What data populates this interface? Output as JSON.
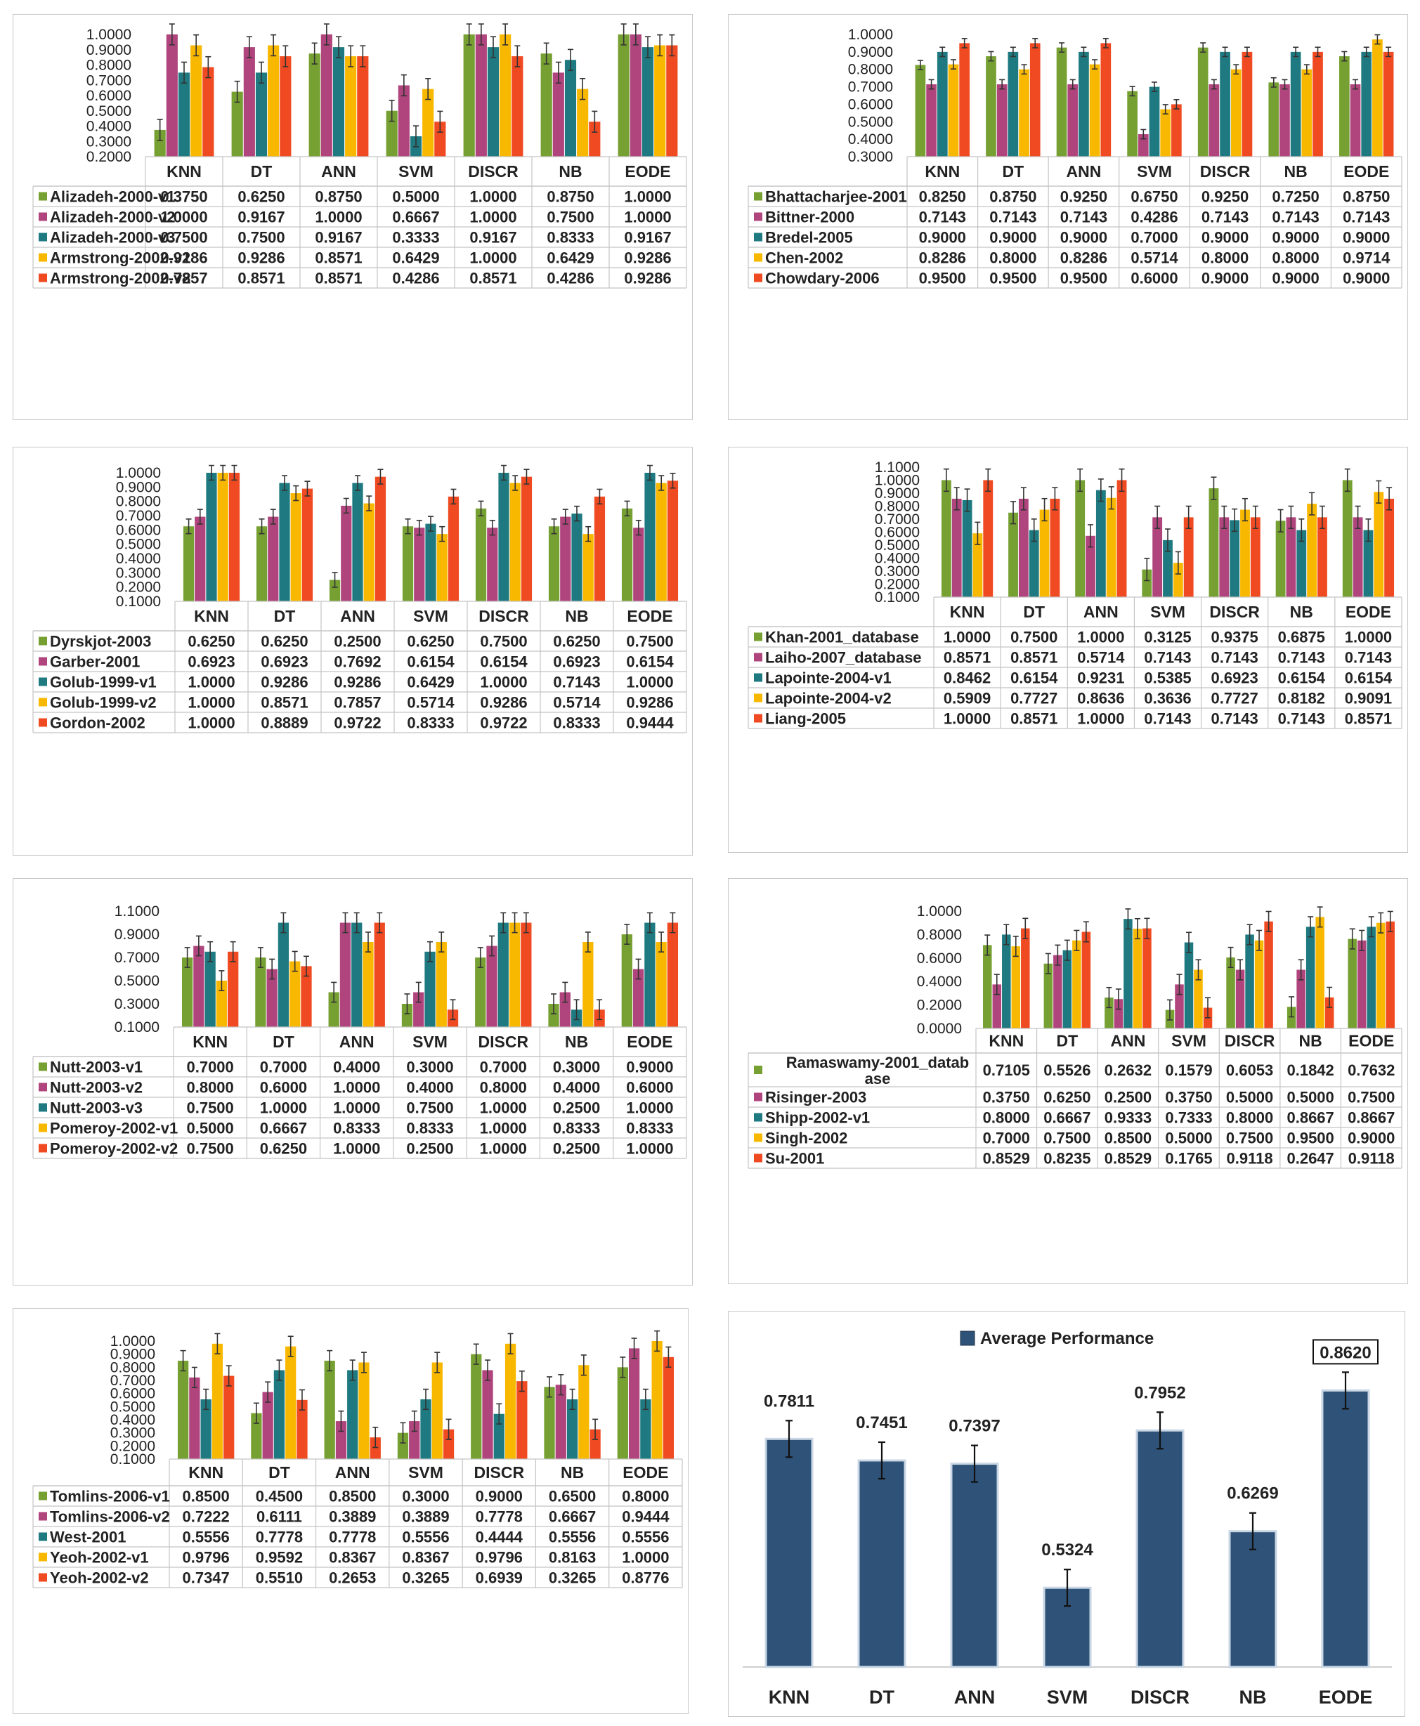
{
  "colors": {
    "green": "#77A033",
    "magenta": "#B0457D",
    "teal": "#1E7A80",
    "yellow": "#F9B800",
    "red": "#F04A22",
    "navy": "#2F5378"
  },
  "chart_data": [
    {
      "type": "bar",
      "categories": [
        "KNN",
        "DT",
        "ANN",
        "SVM",
        "DISCR",
        "NB",
        "EODE"
      ],
      "ylim": [
        0.2,
        1.0
      ],
      "yticks": [
        "0.2000",
        "0.3000",
        "0.4000",
        "0.5000",
        "0.6000",
        "0.7000",
        "0.8000",
        "0.9000",
        "1.0000"
      ],
      "series": [
        {
          "name": "Alizadeh-2000-v1",
          "values": [
            0.375,
            0.625,
            0.875,
            0.5,
            1.0,
            0.875,
            1.0
          ],
          "labels": [
            "0.3750",
            "0.6250",
            "0.8750",
            "0.5000",
            "1.0000",
            "0.8750",
            "1.0000"
          ]
        },
        {
          "name": "Alizadeh-2000-v2",
          "values": [
            1.0,
            0.9167,
            1.0,
            0.6667,
            1.0,
            0.75,
            1.0
          ],
          "labels": [
            "1.0000",
            "0.9167",
            "1.0000",
            "0.6667",
            "1.0000",
            "0.7500",
            "1.0000"
          ]
        },
        {
          "name": "Alizadeh-2000-v3",
          "values": [
            0.75,
            0.75,
            0.9167,
            0.3333,
            0.9167,
            0.8333,
            0.9167
          ],
          "labels": [
            "0.7500",
            "0.7500",
            "0.9167",
            "0.3333",
            "0.9167",
            "0.8333",
            "0.9167"
          ]
        },
        {
          "name": "Armstrong-2002-v1",
          "values": [
            0.9286,
            0.9286,
            0.8571,
            0.6429,
            1.0,
            0.6429,
            0.9286
          ],
          "labels": [
            "0.9286",
            "0.9286",
            "0.8571",
            "0.6429",
            "1.0000",
            "0.6429",
            "0.9286"
          ]
        },
        {
          "name": "Armstrong-2002-v2",
          "values": [
            0.7857,
            0.8571,
            0.8571,
            0.4286,
            0.8571,
            0.4286,
            0.9286
          ],
          "labels": [
            "0.7857",
            "0.8571",
            "0.8571",
            "0.4286",
            "0.8571",
            "0.4286",
            "0.9286"
          ]
        }
      ]
    },
    {
      "type": "bar",
      "categories": [
        "KNN",
        "DT",
        "ANN",
        "SVM",
        "DISCR",
        "NB",
        "EODE"
      ],
      "ylim": [
        0.3,
        1.0
      ],
      "yticks": [
        "0.3000",
        "0.4000",
        "0.5000",
        "0.6000",
        "0.7000",
        "0.8000",
        "0.9000",
        "1.0000"
      ],
      "series": [
        {
          "name": "Bhattacharjee-2001",
          "values": [
            0.825,
            0.875,
            0.925,
            0.675,
            0.925,
            0.725,
            0.875
          ],
          "labels": [
            "0.8250",
            "0.8750",
            "0.9250",
            "0.6750",
            "0.9250",
            "0.7250",
            "0.8750"
          ]
        },
        {
          "name": "Bittner-2000",
          "values": [
            0.7143,
            0.7143,
            0.7143,
            0.4286,
            0.7143,
            0.7143,
            0.7143
          ],
          "labels": [
            "0.7143",
            "0.7143",
            "0.7143",
            "0.4286",
            "0.7143",
            "0.7143",
            "0.7143"
          ]
        },
        {
          "name": "Bredel-2005",
          "values": [
            0.9,
            0.9,
            0.9,
            0.7,
            0.9,
            0.9,
            0.9
          ],
          "labels": [
            "0.9000",
            "0.9000",
            "0.9000",
            "0.7000",
            "0.9000",
            "0.9000",
            "0.9000"
          ]
        },
        {
          "name": "Chen-2002",
          "values": [
            0.8286,
            0.8,
            0.8286,
            0.5714,
            0.8,
            0.8,
            0.9714
          ],
          "labels": [
            "0.8286",
            "0.8000",
            "0.8286",
            "0.5714",
            "0.8000",
            "0.8000",
            "0.9714"
          ]
        },
        {
          "name": "Chowdary-2006",
          "values": [
            0.95,
            0.95,
            0.95,
            0.6,
            0.9,
            0.9,
            0.9
          ],
          "labels": [
            "0.9500",
            "0.9500",
            "0.9500",
            "0.6000",
            "0.9000",
            "0.9000",
            "0.9000"
          ]
        }
      ]
    },
    {
      "type": "bar",
      "categories": [
        "KNN",
        "DT",
        "ANN",
        "SVM",
        "DISCR",
        "NB",
        "EODE"
      ],
      "ylim": [
        0.1,
        1.0
      ],
      "yticks": [
        "0.1000",
        "0.2000",
        "0.3000",
        "0.4000",
        "0.5000",
        "0.6000",
        "0.7000",
        "0.8000",
        "0.9000",
        "1.0000"
      ],
      "series": [
        {
          "name": "Dyrskjot-2003",
          "values": [
            0.625,
            0.625,
            0.25,
            0.625,
            0.75,
            0.625,
            0.75
          ],
          "labels": [
            "0.6250",
            "0.6250",
            "0.2500",
            "0.6250",
            "0.7500",
            "0.6250",
            "0.7500"
          ]
        },
        {
          "name": "Garber-2001",
          "values": [
            0.6923,
            0.6923,
            0.7692,
            0.6154,
            0.6154,
            0.6923,
            0.6154
          ],
          "labels": [
            "0.6923",
            "0.6923",
            "0.7692",
            "0.6154",
            "0.6154",
            "0.6923",
            "0.6154"
          ]
        },
        {
          "name": "Golub-1999-v1",
          "values": [
            1.0,
            0.9286,
            0.9286,
            0.6429,
            1.0,
            0.7143,
            1.0
          ],
          "labels": [
            "1.0000",
            "0.9286",
            "0.9286",
            "0.6429",
            "1.0000",
            "0.7143",
            "1.0000"
          ]
        },
        {
          "name": "Golub-1999-v2",
          "values": [
            1.0,
            0.8571,
            0.7857,
            0.5714,
            0.9286,
            0.5714,
            0.9286
          ],
          "labels": [
            "1.0000",
            "0.8571",
            "0.7857",
            "0.5714",
            "0.9286",
            "0.5714",
            "0.9286"
          ]
        },
        {
          "name": "Gordon-2002",
          "values": [
            1.0,
            0.8889,
            0.9722,
            0.8333,
            0.9722,
            0.8333,
            0.9444
          ],
          "labels": [
            "1.0000",
            "0.8889",
            "0.9722",
            "0.8333",
            "0.9722",
            "0.8333",
            "0.9444"
          ]
        }
      ]
    },
    {
      "type": "bar",
      "categories": [
        "KNN",
        "DT",
        "ANN",
        "SVM",
        "DISCR",
        "NB",
        "EODE"
      ],
      "ylim": [
        0.1,
        1.1
      ],
      "yticks": [
        "0.1000",
        "0.2000",
        "0.3000",
        "0.4000",
        "0.5000",
        "0.6000",
        "0.7000",
        "0.8000",
        "0.9000",
        "1.0000",
        "1.1000"
      ],
      "series": [
        {
          "name": "Khan-2001_database",
          "values": [
            1.0,
            0.75,
            1.0,
            0.3125,
            0.9375,
            0.6875,
            1.0
          ],
          "labels": [
            "1.0000",
            "0.7500",
            "1.0000",
            "0.3125",
            "0.9375",
            "0.6875",
            "1.0000"
          ]
        },
        {
          "name": "Laiho-2007_database",
          "values": [
            0.8571,
            0.8571,
            0.5714,
            0.7143,
            0.7143,
            0.7143,
            0.7143
          ],
          "labels": [
            "0.8571",
            "0.8571",
            "0.5714",
            "0.7143",
            "0.7143",
            "0.7143",
            "0.7143"
          ]
        },
        {
          "name": "Lapointe-2004-v1",
          "values": [
            0.8462,
            0.6154,
            0.9231,
            0.5385,
            0.6923,
            0.6154,
            0.6154
          ],
          "labels": [
            "0.8462",
            "0.6154",
            "0.9231",
            "0.5385",
            "0.6923",
            "0.6154",
            "0.6154"
          ]
        },
        {
          "name": "Lapointe-2004-v2",
          "values": [
            0.5909,
            0.7727,
            0.8636,
            0.3636,
            0.7727,
            0.8182,
            0.9091
          ],
          "labels": [
            "0.5909",
            "0.7727",
            "0.8636",
            "0.3636",
            "0.7727",
            "0.8182",
            "0.9091"
          ]
        },
        {
          "name": "Liang-2005",
          "values": [
            1.0,
            0.8571,
            1.0,
            0.7143,
            0.7143,
            0.7143,
            0.8571
          ],
          "labels": [
            "1.0000",
            "0.8571",
            "1.0000",
            "0.7143",
            "0.7143",
            "0.7143",
            "0.8571"
          ]
        }
      ]
    },
    {
      "type": "bar",
      "categories": [
        "KNN",
        "DT",
        "ANN",
        "SVM",
        "DISCR",
        "NB",
        "EODE"
      ],
      "ylim": [
        0.1,
        1.1
      ],
      "yticks": [
        "0.1000",
        "0.3000",
        "0.5000",
        "0.7000",
        "0.9000",
        "1.1000"
      ],
      "series": [
        {
          "name": "Nutt-2003-v1",
          "values": [
            0.7,
            0.7,
            0.4,
            0.3,
            0.7,
            0.3,
            0.9
          ],
          "labels": [
            "0.7000",
            "0.7000",
            "0.4000",
            "0.3000",
            "0.7000",
            "0.3000",
            "0.9000"
          ]
        },
        {
          "name": "Nutt-2003-v2",
          "values": [
            0.8,
            0.6,
            1.0,
            0.4,
            0.8,
            0.4,
            0.6
          ],
          "labels": [
            "0.8000",
            "0.6000",
            "1.0000",
            "0.4000",
            "0.8000",
            "0.4000",
            "0.6000"
          ]
        },
        {
          "name": "Nutt-2003-v3",
          "values": [
            0.75,
            1.0,
            1.0,
            0.75,
            1.0,
            0.25,
            1.0
          ],
          "labels": [
            "0.7500",
            "1.0000",
            "1.0000",
            "0.7500",
            "1.0000",
            "0.2500",
            "1.0000"
          ]
        },
        {
          "name": "Pomeroy-2002-v1",
          "values": [
            0.5,
            0.6667,
            0.8333,
            0.8333,
            1.0,
            0.8333,
            0.8333
          ],
          "labels": [
            "0.5000",
            "0.6667",
            "0.8333",
            "0.8333",
            "1.0000",
            "0.8333",
            "0.8333"
          ]
        },
        {
          "name": "Pomeroy-2002-v2",
          "values": [
            0.75,
            0.625,
            1.0,
            0.25,
            1.0,
            0.25,
            1.0
          ],
          "labels": [
            "0.7500",
            "0.6250",
            "1.0000",
            "0.2500",
            "1.0000",
            "0.2500",
            "1.0000"
          ]
        }
      ]
    },
    {
      "type": "bar",
      "categories": [
        "KNN",
        "DT",
        "ANN",
        "SVM",
        "DISCR",
        "NB",
        "EODE"
      ],
      "ylim": [
        0.0,
        1.0
      ],
      "yticks": [
        "0.0000",
        "0.2000",
        "0.4000",
        "0.6000",
        "0.8000",
        "1.0000"
      ],
      "series": [
        {
          "name": "Ramaswamy-2001_datab ase",
          "values": [
            0.7105,
            0.5526,
            0.2632,
            0.1579,
            0.6053,
            0.1842,
            0.7632
          ],
          "labels": [
            "0.7105",
            "0.5526",
            "0.2632",
            "0.1579",
            "0.6053",
            "0.1842",
            "0.7632"
          ]
        },
        {
          "name": "Risinger-2003",
          "values": [
            0.375,
            0.625,
            0.25,
            0.375,
            0.5,
            0.5,
            0.75
          ],
          "labels": [
            "0.3750",
            "0.6250",
            "0.2500",
            "0.3750",
            "0.5000",
            "0.5000",
            "0.7500"
          ]
        },
        {
          "name": "Shipp-2002-v1",
          "values": [
            0.8,
            0.6667,
            0.9333,
            0.7333,
            0.8,
            0.8667,
            0.8667
          ],
          "labels": [
            "0.8000",
            "0.6667",
            "0.9333",
            "0.7333",
            "0.8000",
            "0.8667",
            "0.8667"
          ]
        },
        {
          "name": "Singh-2002",
          "values": [
            0.7,
            0.75,
            0.85,
            0.5,
            0.75,
            0.95,
            0.9
          ],
          "labels": [
            "0.7000",
            "0.7500",
            "0.8500",
            "0.5000",
            "0.7500",
            "0.9500",
            "0.9000"
          ]
        },
        {
          "name": "Su-2001",
          "values": [
            0.8529,
            0.8235,
            0.8529,
            0.1765,
            0.9118,
            0.2647,
            0.9118
          ],
          "labels": [
            "0.8529",
            "0.8235",
            "0.8529",
            "0.1765",
            "0.9118",
            "0.2647",
            "0.9118"
          ]
        }
      ]
    },
    {
      "type": "bar",
      "categories": [
        "KNN",
        "DT",
        "ANN",
        "SVM",
        "DISCR",
        "NB",
        "EODE"
      ],
      "ylim": [
        0.1,
        1.0
      ],
      "yticks": [
        "0.1000",
        "0.2000",
        "0.3000",
        "0.4000",
        "0.5000",
        "0.6000",
        "0.7000",
        "0.8000",
        "0.9000",
        "1.0000"
      ],
      "series": [
        {
          "name": "Tomlins-2006-v1",
          "values": [
            0.85,
            0.45,
            0.85,
            0.3,
            0.9,
            0.65,
            0.8
          ],
          "labels": [
            "0.8500",
            "0.4500",
            "0.8500",
            "0.3000",
            "0.9000",
            "0.6500",
            "0.8000"
          ]
        },
        {
          "name": "Tomlins-2006-v2",
          "values": [
            0.7222,
            0.6111,
            0.3889,
            0.3889,
            0.7778,
            0.6667,
            0.9444
          ],
          "labels": [
            "0.7222",
            "0.6111",
            "0.3889",
            "0.3889",
            "0.7778",
            "0.6667",
            "0.9444"
          ]
        },
        {
          "name": "West-2001",
          "values": [
            0.5556,
            0.7778,
            0.7778,
            0.5556,
            0.4444,
            0.5556,
            0.5556
          ],
          "labels": [
            "0.5556",
            "0.7778",
            "0.7778",
            "0.5556",
            "0.4444",
            "0.5556",
            "0.5556"
          ]
        },
        {
          "name": "Yeoh-2002-v1",
          "values": [
            0.9796,
            0.9592,
            0.8367,
            0.8367,
            0.9796,
            0.8163,
            1.0
          ],
          "labels": [
            "0.9796",
            "0.9592",
            "0.8367",
            "0.8367",
            "0.9796",
            "0.8163",
            "1.0000"
          ]
        },
        {
          "name": "Yeoh-2002-v2",
          "values": [
            0.7347,
            0.551,
            0.2653,
            0.3265,
            0.6939,
            0.3265,
            0.8776
          ],
          "labels": [
            "0.7347",
            "0.5510",
            "0.2653",
            "0.3265",
            "0.6939",
            "0.3265",
            "0.8776"
          ]
        }
      ]
    },
    {
      "type": "bar",
      "title": "Average Performance",
      "categories": [
        "KNN",
        "DT",
        "ANN",
        "SVM",
        "DISCR",
        "NB",
        "EODE"
      ],
      "ylim": [
        0.4,
        0.9
      ],
      "series": [
        {
          "name": "Average Performance",
          "values": [
            0.7811,
            0.7451,
            0.7397,
            0.5324,
            0.7952,
            0.6269,
            0.862
          ],
          "labels": [
            "0.7811",
            "0.7451",
            "0.7397",
            "0.5324",
            "0.7952",
            "0.6269",
            "0.8620"
          ]
        }
      ],
      "highlight": "EODE"
    }
  ]
}
